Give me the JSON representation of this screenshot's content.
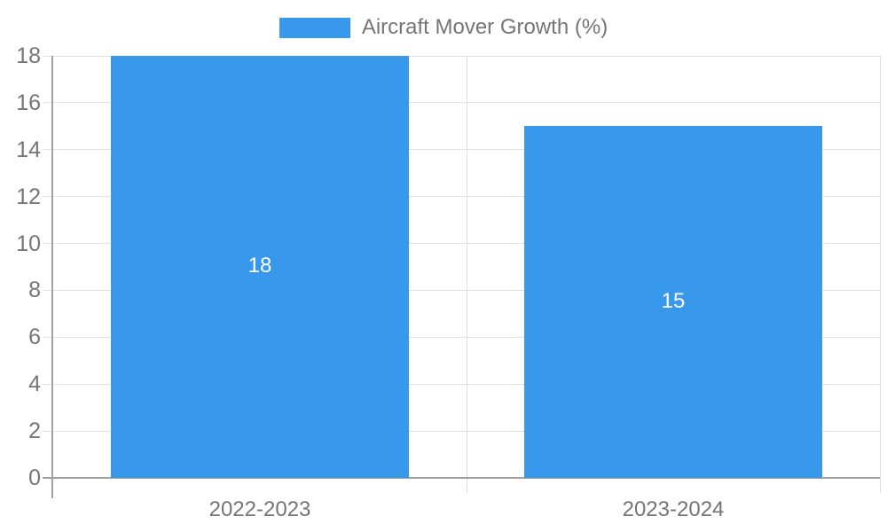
{
  "chart_data": {
    "type": "bar",
    "title": "",
    "legend": "Aircraft Mover Growth (%)",
    "legend_position": "top-center",
    "categories": [
      "2022-2023",
      "2023-2024"
    ],
    "series": [
      {
        "name": "Aircraft Mover Growth (%)",
        "values": [
          18,
          15
        ]
      }
    ],
    "bar_value_labels": [
      "18",
      "15"
    ],
    "xlabel": "",
    "ylabel": "",
    "ylim": [
      0,
      18
    ],
    "yticks": [
      0,
      2,
      4,
      6,
      8,
      10,
      12,
      14,
      16,
      18
    ],
    "grid": true,
    "colors": {
      "bar": "#3899ec",
      "bar_value_label": "#ffffff",
      "grid": "#e2e2e2",
      "axis": "#a2a2a2",
      "tick_text": "#757575",
      "background": "#ffffff"
    }
  }
}
